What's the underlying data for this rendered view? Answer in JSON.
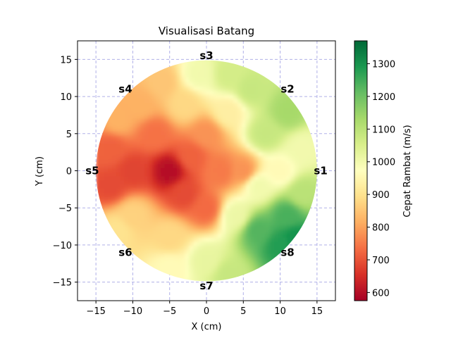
{
  "chart_data": {
    "type": "heatmap",
    "title": "Visualisasi Batang",
    "xlabel": "X (cm)",
    "ylabel": "Y (cm)",
    "xlim": [
      -17.5,
      17.5
    ],
    "ylim": [
      -17.5,
      17.5
    ],
    "x_ticks": [
      -15,
      -10,
      -5,
      0,
      5,
      10,
      15
    ],
    "y_ticks": [
      -15,
      -10,
      -5,
      0,
      5,
      10,
      15
    ],
    "x_tick_labels": [
      "−15",
      "−10",
      "−5",
      "0",
      "5",
      "10",
      "15"
    ],
    "y_tick_labels": [
      "−15",
      "−10",
      "−5",
      "0",
      "5",
      "10",
      "15"
    ],
    "grid": true,
    "radius": 15,
    "colorbar": {
      "label": "Cepat Rambat (m/s)",
      "min": 575,
      "max": 1370,
      "ticks": [
        600,
        700,
        800,
        900,
        1000,
        1100,
        1200,
        1300
      ],
      "colormap": "RdYlGn"
    },
    "sensors": [
      {
        "label": "s1",
        "x": 15.5,
        "y": 0
      },
      {
        "label": "s2",
        "x": 11,
        "y": 11
      },
      {
        "label": "s3",
        "x": 0,
        "y": 15.5
      },
      {
        "label": "s4",
        "x": -11,
        "y": 11
      },
      {
        "label": "s5",
        "x": -15.5,
        "y": 0
      },
      {
        "label": "s6",
        "x": -11,
        "y": -11
      },
      {
        "label": "s7",
        "x": 0,
        "y": -15.5
      },
      {
        "label": "s8",
        "x": 11,
        "y": -11
      }
    ],
    "velocity_samples": [
      {
        "x": -5,
        "y": 0,
        "v": 600
      },
      {
        "x": -10,
        "y": 0,
        "v": 680
      },
      {
        "x": -13,
        "y": 3,
        "v": 720
      },
      {
        "x": -13,
        "y": -2,
        "v": 690
      },
      {
        "x": -3,
        "y": -3,
        "v": 690
      },
      {
        "x": -2,
        "y": 2,
        "v": 720
      },
      {
        "x": 2,
        "y": 0,
        "v": 750
      },
      {
        "x": 5,
        "y": 0,
        "v": 780
      },
      {
        "x": 0,
        "y": 5,
        "v": 780
      },
      {
        "x": 0,
        "y": -5,
        "v": 730
      },
      {
        "x": -7,
        "y": 5,
        "v": 740
      },
      {
        "x": -9,
        "y": 9,
        "v": 820
      },
      {
        "x": -6,
        "y": 12,
        "v": 850
      },
      {
        "x": -12,
        "y": 7,
        "v": 820
      },
      {
        "x": -10,
        "y": -6,
        "v": 870
      },
      {
        "x": -12,
        "y": -8,
        "v": 900
      },
      {
        "x": -5,
        "y": -9,
        "v": 880
      },
      {
        "x": -5,
        "y": -13,
        "v": 960
      },
      {
        "x": 0,
        "y": -12,
        "v": 1020
      },
      {
        "x": 3,
        "y": -14,
        "v": 1080
      },
      {
        "x": 7,
        "y": -8,
        "v": 1230
      },
      {
        "x": 11,
        "y": -6,
        "v": 1240
      },
      {
        "x": 10,
        "y": -10,
        "v": 1280
      },
      {
        "x": 12,
        "y": -9,
        "v": 1300
      },
      {
        "x": 4,
        "y": -6,
        "v": 1010
      },
      {
        "x": 10,
        "y": 0,
        "v": 960
      },
      {
        "x": 13,
        "y": 3,
        "v": 1000
      },
      {
        "x": 8,
        "y": 5,
        "v": 1080
      },
      {
        "x": 11,
        "y": 8,
        "v": 1130
      },
      {
        "x": 6,
        "y": 11,
        "v": 1080
      },
      {
        "x": 3,
        "y": 13,
        "v": 1060
      },
      {
        "x": -1,
        "y": 13,
        "v": 1000
      },
      {
        "x": -3,
        "y": 9,
        "v": 880
      },
      {
        "x": 3,
        "y": 8,
        "v": 930
      },
      {
        "x": 7,
        "y": -2,
        "v": 1000
      },
      {
        "x": 13,
        "y": -3,
        "v": 1100
      }
    ]
  }
}
